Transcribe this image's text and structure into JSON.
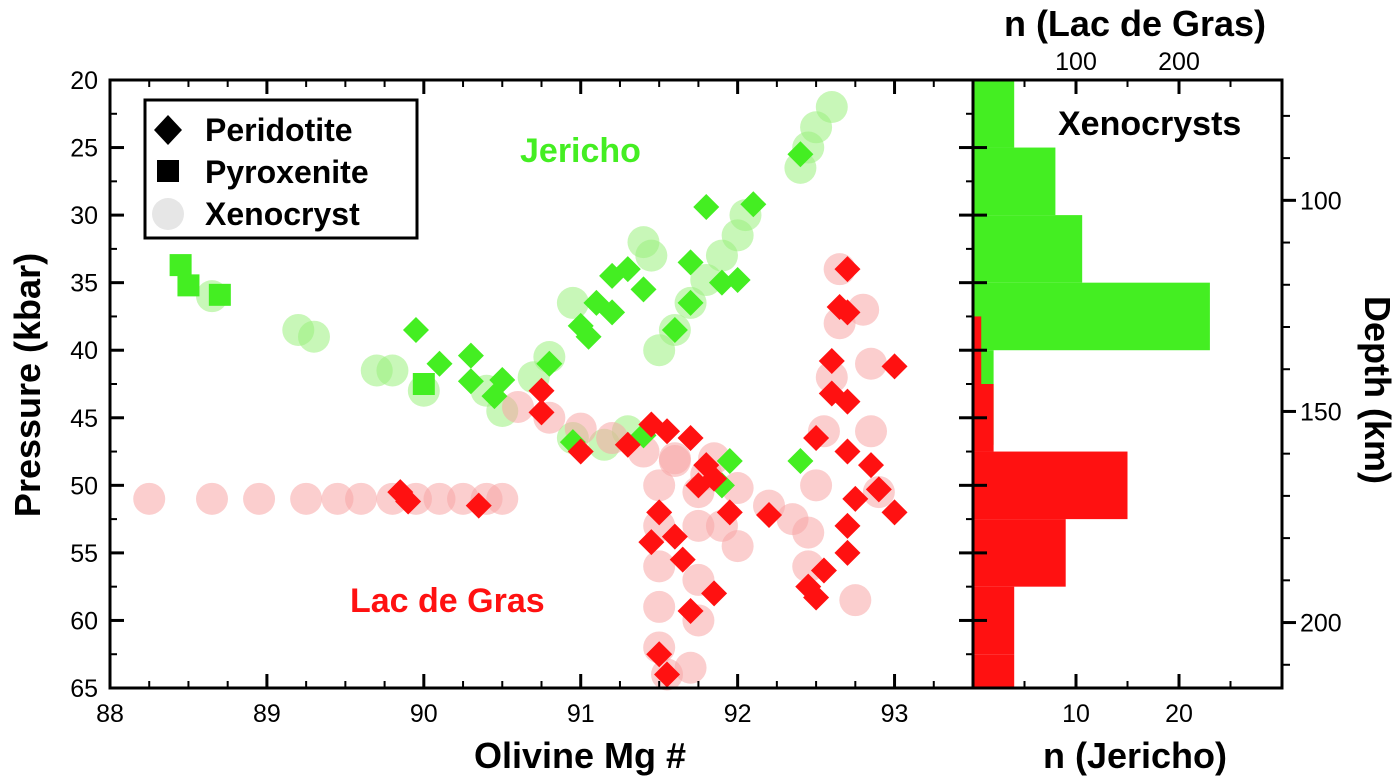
{
  "chart_data": [
    {
      "type": "scatter",
      "xlabel": "Olivine Mg #",
      "ylabel": "Pressure (kbar)",
      "xlim": [
        88,
        93.5
      ],
      "ylim": [
        65,
        20
      ],
      "x_ticks": [
        88,
        89,
        90,
        91,
        92,
        93
      ],
      "y_ticks": [
        20,
        25,
        30,
        35,
        40,
        45,
        50,
        55,
        60,
        65
      ],
      "legend": {
        "placement": "top-left",
        "entries": [
          {
            "name": "Peridotite",
            "marker": "diamond"
          },
          {
            "name": "Pyroxenite",
            "marker": "square"
          },
          {
            "name": "Xenocryst",
            "marker": "circle"
          }
        ]
      },
      "annotations": [
        {
          "text": "Jericho",
          "color": "#44ee22"
        },
        {
          "text": "Lac de Gras",
          "color": "#ff1111"
        }
      ],
      "colors": {
        "jericho": "#44ee22",
        "lac_de_gras": "#ff1111",
        "jericho_xeno": "#9bf07e",
        "lac_xeno": "#f8a5a5"
      },
      "series": [
        {
          "group": "Jericho",
          "type": "Peridotite",
          "points": [
            [
              92.4,
              25.5
            ],
            [
              91.8,
              29.4
            ],
            [
              92.1,
              29.2
            ],
            [
              91.7,
              33.5
            ],
            [
              91.9,
              35
            ],
            [
              92,
              34.8
            ],
            [
              91.2,
              34.5
            ],
            [
              91.3,
              34
            ],
            [
              91.4,
              35.5
            ],
            [
              91.1,
              36.5
            ],
            [
              91.2,
              37.2
            ],
            [
              91,
              38.2
            ],
            [
              91.05,
              39
            ],
            [
              91.7,
              36.5
            ],
            [
              91.6,
              38.5
            ],
            [
              90.8,
              41
            ],
            [
              90.3,
              40.4
            ],
            [
              90.1,
              41
            ],
            [
              90.3,
              42.3
            ],
            [
              89.95,
              38.5
            ],
            [
              90.5,
              42.2
            ],
            [
              90.45,
              43.4
            ],
            [
              90.95,
              46.8
            ],
            [
              91.4,
              46.3
            ],
            [
              91.95,
              48.2
            ],
            [
              91.9,
              50
            ],
            [
              92.4,
              48.2
            ]
          ]
        },
        {
          "group": "Jericho",
          "type": "Pyroxenite",
          "points": [
            [
              88.45,
              33.7
            ],
            [
              88.5,
              35.2
            ],
            [
              88.7,
              35.9
            ],
            [
              90,
              42.5
            ]
          ]
        },
        {
          "group": "Lac de Gras",
          "type": "Peridotite",
          "points": [
            [
              92.7,
              34
            ],
            [
              92.65,
              36.8
            ],
            [
              92.7,
              37.2
            ],
            [
              92.6,
              40.8
            ],
            [
              92.6,
              43.2
            ],
            [
              92.7,
              43.8
            ],
            [
              93,
              41.2
            ],
            [
              92.5,
              46.5
            ],
            [
              92.7,
              47.5
            ],
            [
              92.85,
              48.5
            ],
            [
              92.9,
              50.3
            ],
            [
              93,
              52
            ],
            [
              92.75,
              51
            ],
            [
              92.7,
              53
            ],
            [
              92.7,
              55
            ],
            [
              92.55,
              56.3
            ],
            [
              92.45,
              57.5
            ],
            [
              92.5,
              58.3
            ],
            [
              90.75,
              43
            ],
            [
              90.75,
              44.6
            ],
            [
              91,
              47.5
            ],
            [
              91.3,
              47
            ],
            [
              91.45,
              45.5
            ],
            [
              91.7,
              46.5
            ],
            [
              91.55,
              46
            ],
            [
              91.8,
              48.5
            ],
            [
              91.75,
              50
            ],
            [
              91.85,
              49.5
            ],
            [
              91.95,
              52
            ],
            [
              92.2,
              52.2
            ],
            [
              91.5,
              52
            ],
            [
              91.45,
              54.2
            ],
            [
              91.6,
              53.8
            ],
            [
              91.65,
              55.5
            ],
            [
              91.7,
              59.3
            ],
            [
              91.85,
              58
            ],
            [
              91.5,
              62.5
            ],
            [
              91.55,
              64
            ],
            [
              89.85,
              50.5
            ],
            [
              89.9,
              51.2
            ],
            [
              90.35,
              51.5
            ]
          ]
        },
        {
          "group": "Jericho",
          "type": "Xenocryst",
          "points": [
            [
              92.6,
              22
            ],
            [
              92.5,
              23.5
            ],
            [
              92.45,
              25
            ],
            [
              92.4,
              26.5
            ],
            [
              92.05,
              30
            ],
            [
              92,
              31.5
            ],
            [
              91.9,
              33
            ],
            [
              91.8,
              34.8
            ],
            [
              91.7,
              36.5
            ],
            [
              91.6,
              38.5
            ],
            [
              91.5,
              40
            ],
            [
              91.4,
              32
            ],
            [
              91.45,
              33
            ],
            [
              90.95,
              36.5
            ],
            [
              90.8,
              40.5
            ],
            [
              90.7,
              42
            ],
            [
              90.5,
              44.5
            ],
            [
              90.4,
              43
            ],
            [
              90.0,
              43
            ],
            [
              89.8,
              41.5
            ],
            [
              89.7,
              41.5
            ],
            [
              89.3,
              39
            ],
            [
              89.2,
              38.5
            ],
            [
              88.65,
              36
            ],
            [
              90.95,
              46.5
            ],
            [
              91.15,
              47
            ],
            [
              91.3,
              46
            ]
          ]
        },
        {
          "group": "Lac de Gras",
          "type": "Xenocryst",
          "points": [
            [
              88.25,
              51
            ],
            [
              88.65,
              51
            ],
            [
              88.95,
              51
            ],
            [
              89.25,
              51
            ],
            [
              89.45,
              51
            ],
            [
              89.6,
              51
            ],
            [
              89.8,
              51
            ],
            [
              89.95,
              51
            ],
            [
              90.1,
              51
            ],
            [
              90.25,
              51
            ],
            [
              90.4,
              51
            ],
            [
              90.5,
              51
            ],
            [
              90.6,
              44.2
            ],
            [
              90.8,
              45
            ],
            [
              91.0,
              45.8
            ],
            [
              91.2,
              46.5
            ],
            [
              91.4,
              47.5
            ],
            [
              91.6,
              48.2
            ],
            [
              91.8,
              49.2
            ],
            [
              92.0,
              50.2
            ],
            [
              92.2,
              51.5
            ],
            [
              92.35,
              52.5
            ],
            [
              92.45,
              53.5
            ],
            [
              92.45,
              56
            ],
            [
              92.5,
              50
            ],
            [
              92.55,
              46
            ],
            [
              92.6,
              42
            ],
            [
              92.65,
              38
            ],
            [
              92.65,
              34
            ],
            [
              92.8,
              37
            ],
            [
              92.85,
              41
            ],
            [
              92.85,
              46
            ],
            [
              92.9,
              50.5
            ],
            [
              92.75,
              58.5
            ],
            [
              91.5,
              50
            ],
            [
              91.5,
              53
            ],
            [
              91.5,
              56
            ],
            [
              91.5,
              59
            ],
            [
              91.5,
              62
            ],
            [
              91.55,
              64
            ],
            [
              91.7,
              63.5
            ],
            [
              91.75,
              60
            ],
            [
              91.75,
              57
            ],
            [
              91.75,
              53
            ],
            [
              91.75,
              50.5
            ],
            [
              91.85,
              48
            ],
            [
              91.9,
              53
            ],
            [
              92.0,
              54.5
            ],
            [
              91.6,
              48
            ]
          ]
        }
      ]
    },
    {
      "type": "bar",
      "orientation": "horizontal",
      "label": "Xenocrysts",
      "x_top_label": "n (Lac de Gras)",
      "x_top_ticks": [
        100,
        200
      ],
      "x_bottom_label": "n (Jericho)",
      "x_bottom_ticks": [
        10,
        20
      ],
      "right_label": "Depth (km)",
      "right_ticks": [
        100,
        150,
        200
      ],
      "ylim_pressure": [
        65,
        20
      ],
      "series": [
        {
          "group": "Jericho",
          "color": "#44ee22",
          "axis": "n (Jericho)",
          "bins": [
            [
              20,
              25,
              4
            ],
            [
              25,
              30,
              8
            ],
            [
              30,
              35,
              10.6
            ],
            [
              35,
              40,
              23
            ],
            [
              40,
              45,
              2
            ],
            [
              45,
              47,
              2
            ]
          ]
        },
        {
          "group": "Lac de Gras",
          "color": "#ff1111",
          "axis": "n (Lac de Gras)",
          "bins": [
            [
              37.5,
              42.5,
              8
            ],
            [
              42.5,
              47.5,
              20
            ],
            [
              47.5,
              52.5,
              150
            ],
            [
              52.5,
              57.5,
              90
            ],
            [
              57.5,
              62.5,
              40
            ],
            [
              62.5,
              65,
              40
            ]
          ]
        }
      ]
    }
  ]
}
